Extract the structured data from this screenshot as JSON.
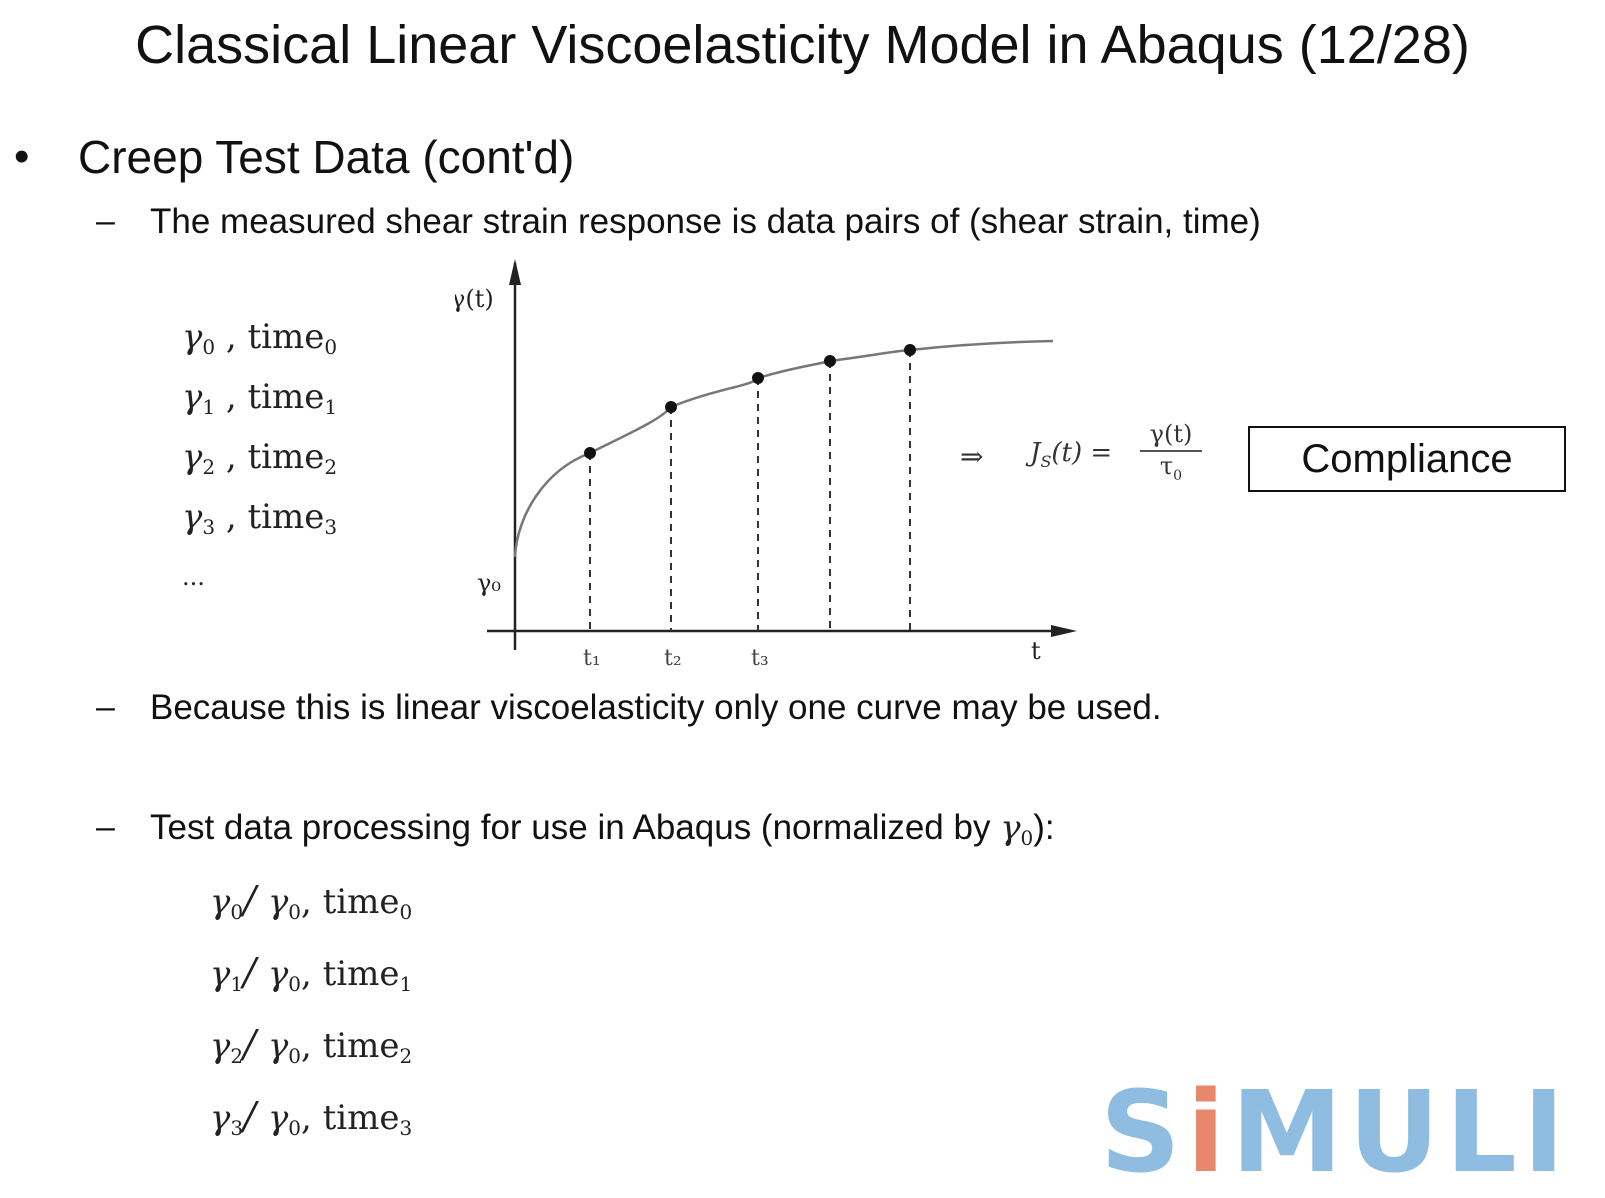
{
  "slide": {
    "title": "Classical Linear Viscoelasticity Model in Abaqus (12/28)",
    "bullet": "Creep Test Data (cont'd)",
    "sub_items": [
      "The measured shear strain response is data pairs of (shear strain, time)",
      "Because this is linear viscoelasticity only one curve may be used.",
      "Test data processing for use in Abaqus (normalized by "
    ],
    "sub_item_3_tail": "):"
  },
  "data_pairs": [
    {
      "sym": "γ",
      "sub": "0",
      "time": "time",
      "tsub": "0"
    },
    {
      "sym": "γ",
      "sub": "1",
      "time": "time",
      "tsub": "1"
    },
    {
      "sym": "γ",
      "sub": "2",
      "time": "time",
      "tsub": "2"
    },
    {
      "sym": "γ",
      "sub": "3",
      "time": "time",
      "tsub": "3"
    }
  ],
  "ellipsis": "...",
  "normalized_pairs": [
    {
      "sym": "γ",
      "sub": "0",
      "den": "γ",
      "dsub": "0",
      "time": "time",
      "tsub": "0"
    },
    {
      "sym": "γ",
      "sub": "1",
      "den": "γ",
      "dsub": "0",
      "time": "time",
      "tsub": "1"
    },
    {
      "sym": "γ",
      "sub": "2",
      "den": "γ",
      "dsub": "0",
      "time": "time",
      "tsub": "2"
    },
    {
      "sym": "γ",
      "sub": "3",
      "den": "γ",
      "dsub": "0",
      "time": "time",
      "tsub": "3"
    }
  ],
  "figure": {
    "y_axis_label": "γ(t)",
    "x_axis_label": "t",
    "y0_label": "γ₀",
    "tick_labels": [
      "t₁",
      "t₂",
      "t₃"
    ],
    "point_count": 5
  },
  "formula": {
    "arrow": "⇒",
    "lhs": "J",
    "lhs_sub": "S",
    "lhs_arg": "(t) =",
    "numerator": "γ(t)",
    "denominator": "τ",
    "den_sub": "0"
  },
  "compliance_label": "Compliance",
  "logo": {
    "pre": "S",
    "accent": "i",
    "post": "MULI"
  }
}
